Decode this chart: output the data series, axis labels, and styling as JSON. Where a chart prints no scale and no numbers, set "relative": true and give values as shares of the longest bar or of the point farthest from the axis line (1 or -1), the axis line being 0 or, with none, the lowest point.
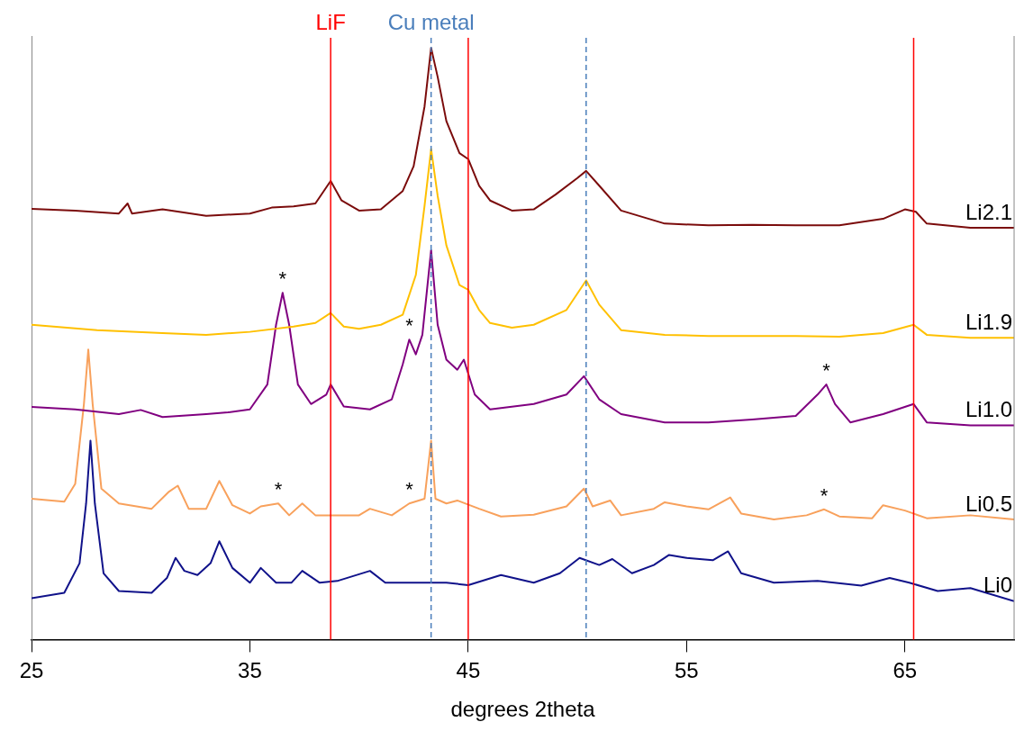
{
  "chart_data": {
    "type": "line",
    "relative": true,
    "xlabel": "degrees 2theta",
    "xlim": [
      25,
      70
    ],
    "xticks": [
      25,
      35,
      45,
      55,
      65
    ],
    "grid": false,
    "legend": false,
    "marker": "none",
    "line_style": "solid",
    "series": [
      {
        "name": "Li2.1",
        "color": "#7b0c0c",
        "x": [
          25,
          27,
          29,
          29.4,
          29.6,
          31,
          33,
          35,
          36,
          37,
          38,
          38.7,
          39.2,
          40,
          41,
          42,
          42.5,
          43,
          43.3,
          43.6,
          44,
          44.6,
          45,
          45.5,
          46,
          47,
          48,
          49,
          50,
          50.4,
          51,
          52,
          54,
          56,
          58,
          60,
          62,
          64,
          65,
          65.5,
          66,
          68,
          70
        ],
        "values": [
          0.728,
          0.725,
          0.72,
          0.737,
          0.72,
          0.727,
          0.716,
          0.72,
          0.73,
          0.732,
          0.737,
          0.775,
          0.742,
          0.725,
          0.727,
          0.758,
          0.8,
          0.901,
          1,
          0.951,
          0.876,
          0.822,
          0.812,
          0.767,
          0.742,
          0.725,
          0.727,
          0.752,
          0.78,
          0.792,
          0.767,
          0.725,
          0.703,
          0.7,
          0.701,
          0.7,
          0.7,
          0.711,
          0.727,
          0.723,
          0.703,
          0.696,
          0.696
        ]
      },
      {
        "name": "Li1.9",
        "color": "#ffc000",
        "x": [
          25,
          28,
          31,
          33,
          35,
          37,
          38,
          38.7,
          39.3,
          40,
          41,
          42,
          42.6,
          43,
          43.3,
          43.6,
          44,
          44.6,
          45,
          45.5,
          46,
          47,
          48,
          49.5,
          50.4,
          51,
          52,
          54,
          56,
          60,
          62,
          64,
          65.4,
          66,
          68,
          70
        ],
        "values": [
          0.532,
          0.523,
          0.518,
          0.515,
          0.52,
          0.529,
          0.535,
          0.552,
          0.529,
          0.525,
          0.532,
          0.549,
          0.616,
          0.733,
          0.829,
          0.75,
          0.666,
          0.599,
          0.591,
          0.557,
          0.535,
          0.527,
          0.532,
          0.557,
          0.607,
          0.566,
          0.523,
          0.515,
          0.513,
          0.513,
          0.512,
          0.518,
          0.532,
          0.515,
          0.51,
          0.51
        ]
      },
      {
        "name": "Li1.0",
        "color": "#800080",
        "x": [
          25,
          27,
          29,
          30,
          31,
          33,
          34,
          35,
          35.8,
          36.2,
          36.5,
          36.8,
          37.2,
          37.8,
          38.5,
          38.7,
          39.3,
          40.5,
          41.5,
          42,
          42.3,
          42.6,
          42.9,
          43.3,
          43.6,
          44,
          44.5,
          44.8,
          45.3,
          46,
          48,
          49.5,
          50.3,
          51,
          52,
          54,
          56,
          58,
          60,
          61,
          61.4,
          61.8,
          62.5,
          64,
          65.4,
          66,
          68,
          70
        ],
        "values": [
          0.393,
          0.389,
          0.381,
          0.388,
          0.376,
          0.381,
          0.384,
          0.389,
          0.431,
          0.532,
          0.586,
          0.532,
          0.431,
          0.398,
          0.414,
          0.431,
          0.394,
          0.389,
          0.406,
          0.465,
          0.507,
          0.482,
          0.515,
          0.658,
          0.532,
          0.473,
          0.456,
          0.473,
          0.414,
          0.389,
          0.398,
          0.414,
          0.445,
          0.406,
          0.381,
          0.367,
          0.367,
          0.372,
          0.378,
          0.414,
          0.431,
          0.398,
          0.367,
          0.381,
          0.398,
          0.367,
          0.362,
          0.362
        ]
      },
      {
        "name": "Li0.5",
        "color": "#f8a15c",
        "x": [
          25,
          26.5,
          27,
          27.4,
          27.6,
          27.8,
          28.2,
          29,
          30.5,
          31.3,
          31.7,
          32.2,
          33,
          33.6,
          34.2,
          35,
          35.5,
          36.3,
          36.8,
          37.4,
          38,
          40,
          40.5,
          41.5,
          42.3,
          43,
          43.3,
          43.5,
          44,
          44.5,
          45.5,
          46.5,
          48,
          49.5,
          50.3,
          50.7,
          51.5,
          52,
          53.5,
          54,
          55,
          56,
          57,
          57.5,
          59,
          60.5,
          61.3,
          62,
          63.5,
          64,
          65,
          66,
          68,
          70
        ],
        "values": [
          0.238,
          0.233,
          0.263,
          0.398,
          0.49,
          0.398,
          0.255,
          0.23,
          0.221,
          0.25,
          0.26,
          0.221,
          0.221,
          0.268,
          0.227,
          0.213,
          0.225,
          0.23,
          0.21,
          0.23,
          0.21,
          0.21,
          0.221,
          0.21,
          0.23,
          0.238,
          0.336,
          0.238,
          0.23,
          0.235,
          0.221,
          0.208,
          0.211,
          0.225,
          0.255,
          0.225,
          0.235,
          0.21,
          0.221,
          0.232,
          0.225,
          0.22,
          0.24,
          0.213,
          0.203,
          0.21,
          0.22,
          0.208,
          0.205,
          0.227,
          0.218,
          0.205,
          0.21,
          0.203
        ]
      },
      {
        "name": "Li0",
        "color": "#10128a",
        "x": [
          25,
          26.5,
          27.2,
          27.5,
          27.7,
          27.9,
          28.3,
          29,
          30.5,
          31.2,
          31.6,
          32,
          32.6,
          33.2,
          33.6,
          34.2,
          35,
          35.5,
          36.2,
          36.9,
          37.4,
          38.2,
          39,
          40.5,
          41.2,
          42,
          44,
          45,
          46.5,
          48,
          49.2,
          50.1,
          51,
          51.6,
          52.5,
          53.5,
          54.2,
          55,
          56.2,
          56.9,
          57.5,
          59,
          61,
          63,
          64.3,
          65.2,
          66.5,
          68,
          70
        ],
        "values": [
          0.07,
          0.079,
          0.129,
          0.23,
          0.336,
          0.23,
          0.112,
          0.082,
          0.079,
          0.104,
          0.138,
          0.116,
          0.109,
          0.129,
          0.166,
          0.121,
          0.096,
          0.121,
          0.096,
          0.096,
          0.116,
          0.096,
          0.099,
          0.116,
          0.096,
          0.096,
          0.096,
          0.092,
          0.109,
          0.096,
          0.112,
          0.138,
          0.126,
          0.136,
          0.112,
          0.126,
          0.143,
          0.138,
          0.134,
          0.149,
          0.112,
          0.096,
          0.099,
          0.091,
          0.104,
          0.096,
          0.082,
          0.087,
          0.065
        ]
      }
    ],
    "ref_lines": [
      {
        "axis": "x",
        "value": 38.7,
        "label": "LiF",
        "color": "#ff0000",
        "line_style": "solid"
      },
      {
        "axis": "x",
        "value": 45.0,
        "color": "#ff0000",
        "line_style": "solid"
      },
      {
        "axis": "x",
        "value": 65.4,
        "color": "#ff0000",
        "line_style": "solid"
      },
      {
        "axis": "x",
        "value": 43.3,
        "label": "Cu metal",
        "color": "#4a7ebb",
        "line_style": "dashed"
      },
      {
        "axis": "x",
        "value": 50.4,
        "color": "#4a7ebb",
        "line_style": "dashed"
      }
    ],
    "annotations": [
      {
        "text": "*",
        "x": 36.5,
        "y": 0.586
      },
      {
        "text": "*",
        "x": 42.3,
        "y": 0.507
      },
      {
        "text": "*",
        "x": 61.4,
        "y": 0.431
      },
      {
        "text": "*",
        "x": 36.3,
        "y": 0.23
      },
      {
        "text": "*",
        "x": 42.3,
        "y": 0.23
      },
      {
        "text": "*",
        "x": 61.3,
        "y": 0.22
      }
    ]
  }
}
